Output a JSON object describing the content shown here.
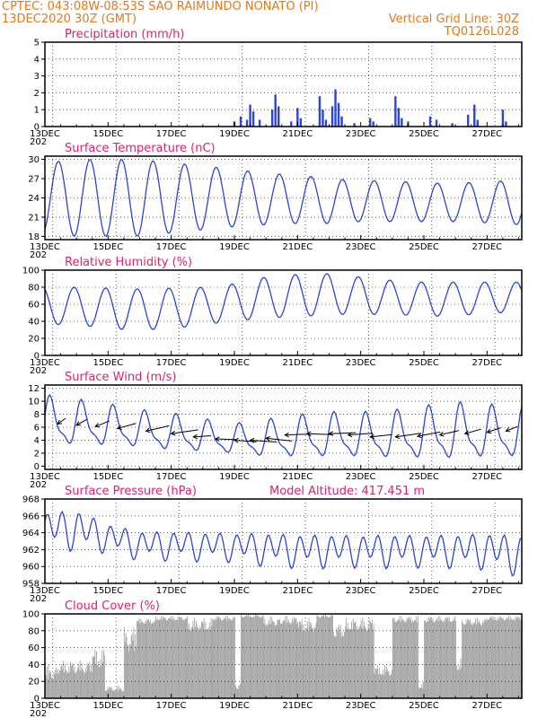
{
  "header": {
    "line1_left": "CPTEC:   043:08W-08:53S  SAO RAIMUNDO NONATO (PI)",
    "line2_left": "13DEC2020 30Z (GMT)",
    "line2_right": "Vertical Grid Line: 30Z",
    "line3_right": "TQ0126L028",
    "color": "#e07a1f"
  },
  "x_axis": {
    "labels": [
      "13DEC",
      "15DEC",
      "17DEC",
      "19DEC",
      "21DEC",
      "23DEC",
      "25DEC",
      "27DEC"
    ],
    "year_fragment": "202",
    "start_day": 13,
    "end_day": 28.1
  },
  "colors": {
    "line": "#2b45d8",
    "bar": "#2b45d8",
    "cloud": "#a6a6a6",
    "title": "#e0206e"
  },
  "chart_data": [
    {
      "type": "bar",
      "title": "Precipitation (mm/h)",
      "ylim": [
        0,
        5
      ],
      "yticks": [
        "0",
        "1",
        "2",
        "3",
        "4",
        "5"
      ],
      "bars": [
        [
          19.0,
          0.3
        ],
        [
          19.2,
          0.6
        ],
        [
          19.4,
          0.4
        ],
        [
          19.5,
          1.3
        ],
        [
          19.6,
          0.9
        ],
        [
          19.8,
          0.4
        ],
        [
          20.2,
          1.0
        ],
        [
          20.3,
          1.9
        ],
        [
          20.4,
          1.2
        ],
        [
          20.8,
          0.3
        ],
        [
          21.0,
          1.1
        ],
        [
          21.1,
          0.5
        ],
        [
          21.7,
          1.8
        ],
        [
          21.8,
          1.0
        ],
        [
          21.9,
          0.4
        ],
        [
          22.1,
          1.2
        ],
        [
          22.2,
          2.2
        ],
        [
          22.3,
          1.4
        ],
        [
          22.4,
          0.6
        ],
        [
          22.8,
          0.2
        ],
        [
          23.3,
          0.5
        ],
        [
          23.4,
          0.3
        ],
        [
          24.1,
          1.8
        ],
        [
          24.2,
          1.1
        ],
        [
          24.3,
          0.5
        ],
        [
          24.5,
          0.3
        ],
        [
          25.2,
          0.6
        ],
        [
          25.4,
          0.4
        ],
        [
          25.9,
          0.2
        ],
        [
          26.4,
          0.7
        ],
        [
          26.6,
          1.3
        ],
        [
          26.7,
          0.4
        ],
        [
          27.5,
          1.0
        ],
        [
          27.6,
          0.3
        ]
      ]
    },
    {
      "type": "line",
      "title": "Surface Temperature (nC)",
      "ylim": [
        17.5,
        30.5
      ],
      "yticks": [
        "18",
        "21",
        "24",
        "27",
        "30"
      ],
      "mean": [
        24.0,
        24.0,
        24.0,
        24.0,
        24.0,
        24.0,
        24.0,
        23.8,
        23.8,
        23.5,
        23.5,
        23.5,
        23.3,
        23.3,
        23.3,
        23.3
      ],
      "amp": [
        5.5,
        6.0,
        6.0,
        6.0,
        5.5,
        5.0,
        4.5,
        4.0,
        3.8,
        3.5,
        3.2,
        3.2,
        3.0,
        3.0,
        3.2,
        3.5
      ]
    },
    {
      "type": "line",
      "title": "Relative Humidity (%)",
      "ylim": [
        0,
        100
      ],
      "yticks": [
        "0",
        "20",
        "40",
        "60",
        "80",
        "100"
      ],
      "mean": [
        58,
        58,
        55,
        54,
        55,
        58,
        62,
        68,
        70,
        72,
        70,
        68,
        66,
        66,
        68,
        68
      ],
      "amp": [
        22,
        22,
        24,
        24,
        24,
        22,
        22,
        24,
        25,
        24,
        22,
        20,
        20,
        20,
        18,
        18
      ]
    },
    {
      "type": "line",
      "title": "Surface Wind (m/s)",
      "ylim": [
        -0.5,
        12.5
      ],
      "yticks": [
        "0",
        "2",
        "4",
        "6",
        "8",
        "10",
        "12"
      ],
      "mean": [
        6.5,
        6.5,
        6.0,
        5.5,
        5.0,
        4.5,
        4.0,
        4.0,
        4.3,
        4.5,
        4.5,
        4.5,
        4.8,
        5.0,
        5.0,
        5.0
      ],
      "amp": [
        3.5,
        3.0,
        2.8,
        2.5,
        2.5,
        2.2,
        2.0,
        2.5,
        2.8,
        3.0,
        3.0,
        3.2,
        3.5,
        3.8,
        3.5,
        3.5
      ],
      "arrows": [
        [
          13.4,
          6.5,
          -18,
          60
        ],
        [
          14.0,
          6.3,
          -20,
          55
        ],
        [
          14.6,
          6.1,
          -22,
          45
        ],
        [
          15.3,
          5.8,
          -25,
          35
        ],
        [
          16.2,
          5.4,
          -30,
          30
        ],
        [
          17.0,
          5.0,
          -32,
          20
        ],
        [
          17.7,
          4.5,
          -20,
          10
        ],
        [
          18.4,
          4.2,
          -22,
          -5
        ],
        [
          19.0,
          4.0,
          -25,
          -10
        ],
        [
          19.5,
          4.0,
          -30,
          -10
        ],
        [
          20.0,
          4.3,
          -30,
          -15
        ],
        [
          20.6,
          4.8,
          -32,
          5
        ],
        [
          21.3,
          5.0,
          -28,
          -5
        ],
        [
          22.0,
          5.0,
          -30,
          5
        ],
        [
          22.6,
          4.8,
          -28,
          10
        ],
        [
          23.3,
          4.5,
          -25,
          15
        ],
        [
          24.1,
          4.5,
          -30,
          20
        ],
        [
          24.8,
          4.6,
          -28,
          25
        ],
        [
          25.5,
          4.8,
          -25,
          30
        ],
        [
          26.3,
          5.0,
          -22,
          35
        ],
        [
          27.0,
          5.2,
          -20,
          40
        ],
        [
          27.6,
          5.4,
          -18,
          45
        ]
      ]
    },
    {
      "type": "line",
      "title": "Surface Pressure (hPa)",
      "annotation": "Model Altitude: 417.451 m",
      "ylim": [
        958,
        968
      ],
      "yticks": [
        "958",
        "960",
        "962",
        "964",
        "966",
        "968"
      ],
      "mean": [
        964.5,
        964.5,
        963.5,
        962.6,
        962.6,
        962.5,
        962.4,
        962.2,
        962.0,
        962.0,
        962.0,
        962.0,
        962.0,
        962.0,
        962.0,
        961.5
      ],
      "amp": [
        2.5,
        2.8,
        2.0,
        2.0,
        2.0,
        2.0,
        2.0,
        2.3,
        2.3,
        2.3,
        2.2,
        2.3,
        2.2,
        2.3,
        2.5,
        2.8
      ]
    },
    {
      "type": "area",
      "title": "Cloud Cover (%)",
      "ylim": [
        0,
        100
      ],
      "yticks": [
        "0",
        "20",
        "40",
        "60",
        "80",
        "100"
      ],
      "segments": [
        [
          13.0,
          13.4,
          0,
          40
        ],
        [
          13.4,
          14.5,
          10,
          45
        ],
        [
          14.5,
          14.9,
          5,
          60
        ],
        [
          14.9,
          15.5,
          0,
          15
        ],
        [
          15.5,
          15.9,
          20,
          85
        ],
        [
          15.9,
          16.5,
          80,
          95
        ],
        [
          16.5,
          17.5,
          85,
          98
        ],
        [
          17.5,
          18.3,
          60,
          96
        ],
        [
          18.3,
          19.0,
          85,
          98
        ],
        [
          19.0,
          19.2,
          0,
          20
        ],
        [
          19.2,
          19.9,
          90,
          100
        ],
        [
          19.9,
          20.4,
          70,
          98
        ],
        [
          20.4,
          21.0,
          75,
          98
        ],
        [
          21.0,
          21.6,
          60,
          95
        ],
        [
          21.6,
          22.1,
          90,
          100
        ],
        [
          22.1,
          22.5,
          50,
          90
        ],
        [
          22.5,
          23.4,
          60,
          96
        ],
        [
          23.4,
          24.0,
          10,
          40
        ],
        [
          24.0,
          24.8,
          80,
          98
        ],
        [
          24.8,
          25.0,
          0,
          20
        ],
        [
          25.0,
          26.0,
          80,
          98
        ],
        [
          26.0,
          26.2,
          10,
          50
        ],
        [
          26.2,
          27.0,
          75,
          96
        ],
        [
          27.0,
          28.1,
          85,
          98
        ]
      ]
    }
  ]
}
